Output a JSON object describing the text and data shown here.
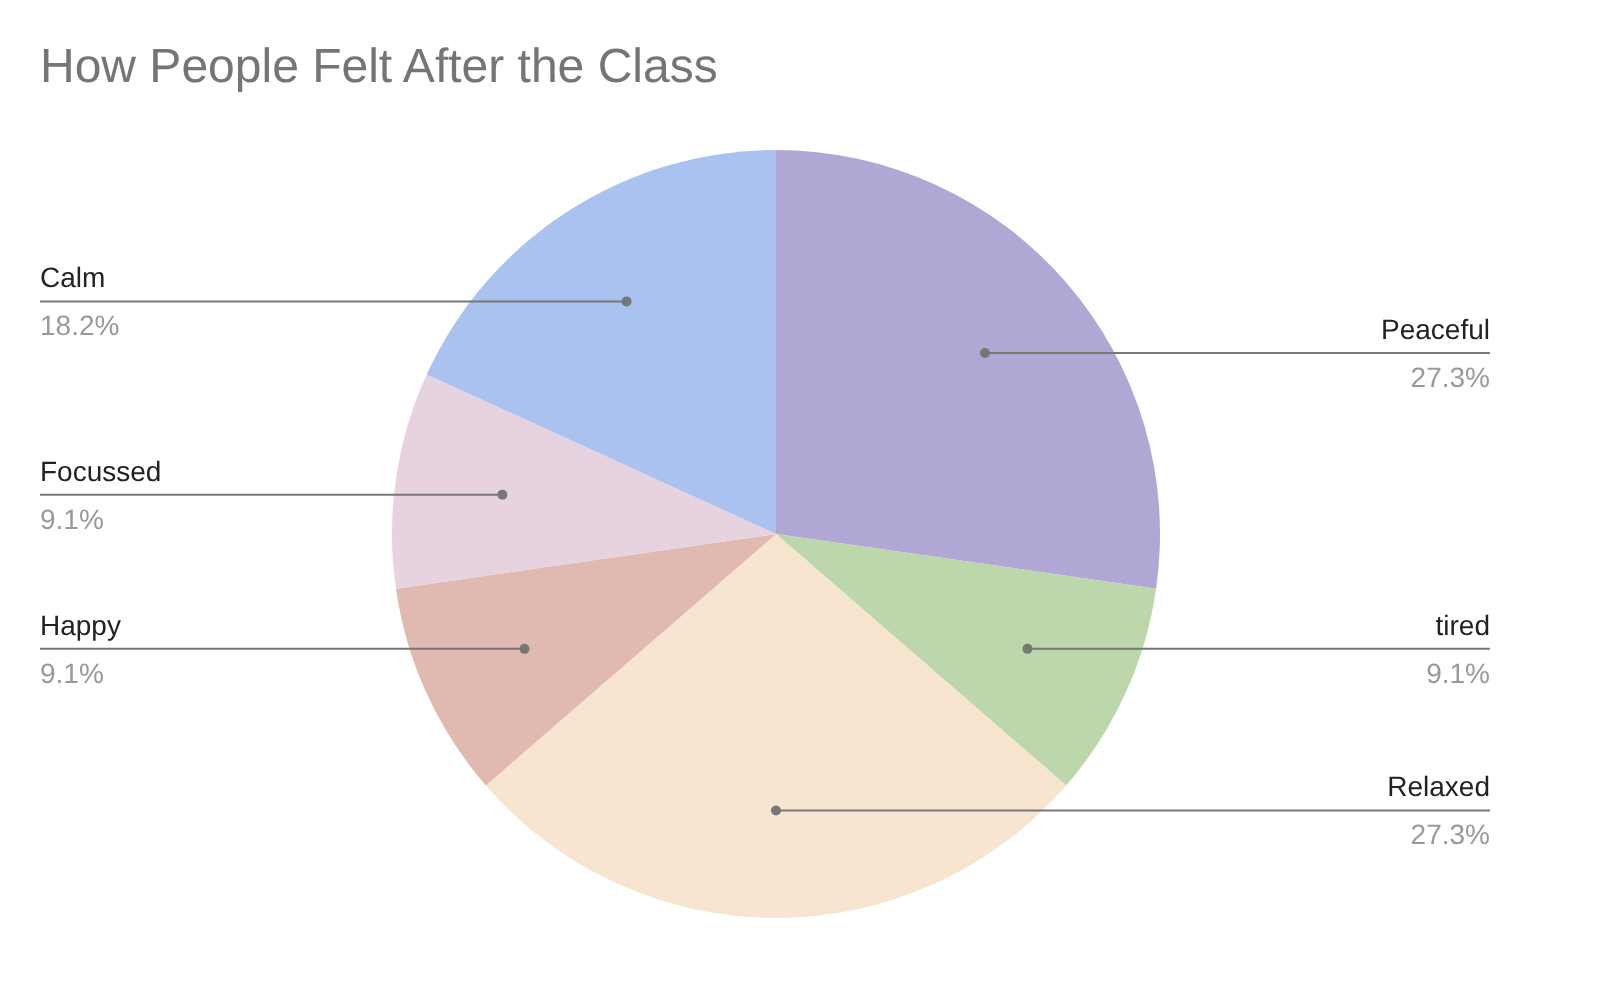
{
  "chart_data": {
    "type": "pie",
    "title": "How People Felt After the Class",
    "categories": [
      "Peaceful",
      "tired",
      "Relaxed",
      "Happy",
      "Focussed",
      "Calm"
    ],
    "values": [
      27.3,
      9.1,
      27.3,
      9.1,
      9.1,
      18.2
    ],
    "value_labels": [
      "27.3%",
      "9.1%",
      "27.3%",
      "9.1%",
      "9.1%",
      "18.2%"
    ],
    "colors": [
      "#b1a7d4",
      "#bcd7ab",
      "#f8e5cf",
      "#e0b9b0",
      "#e7d3df",
      "#a9c2f0"
    ]
  }
}
